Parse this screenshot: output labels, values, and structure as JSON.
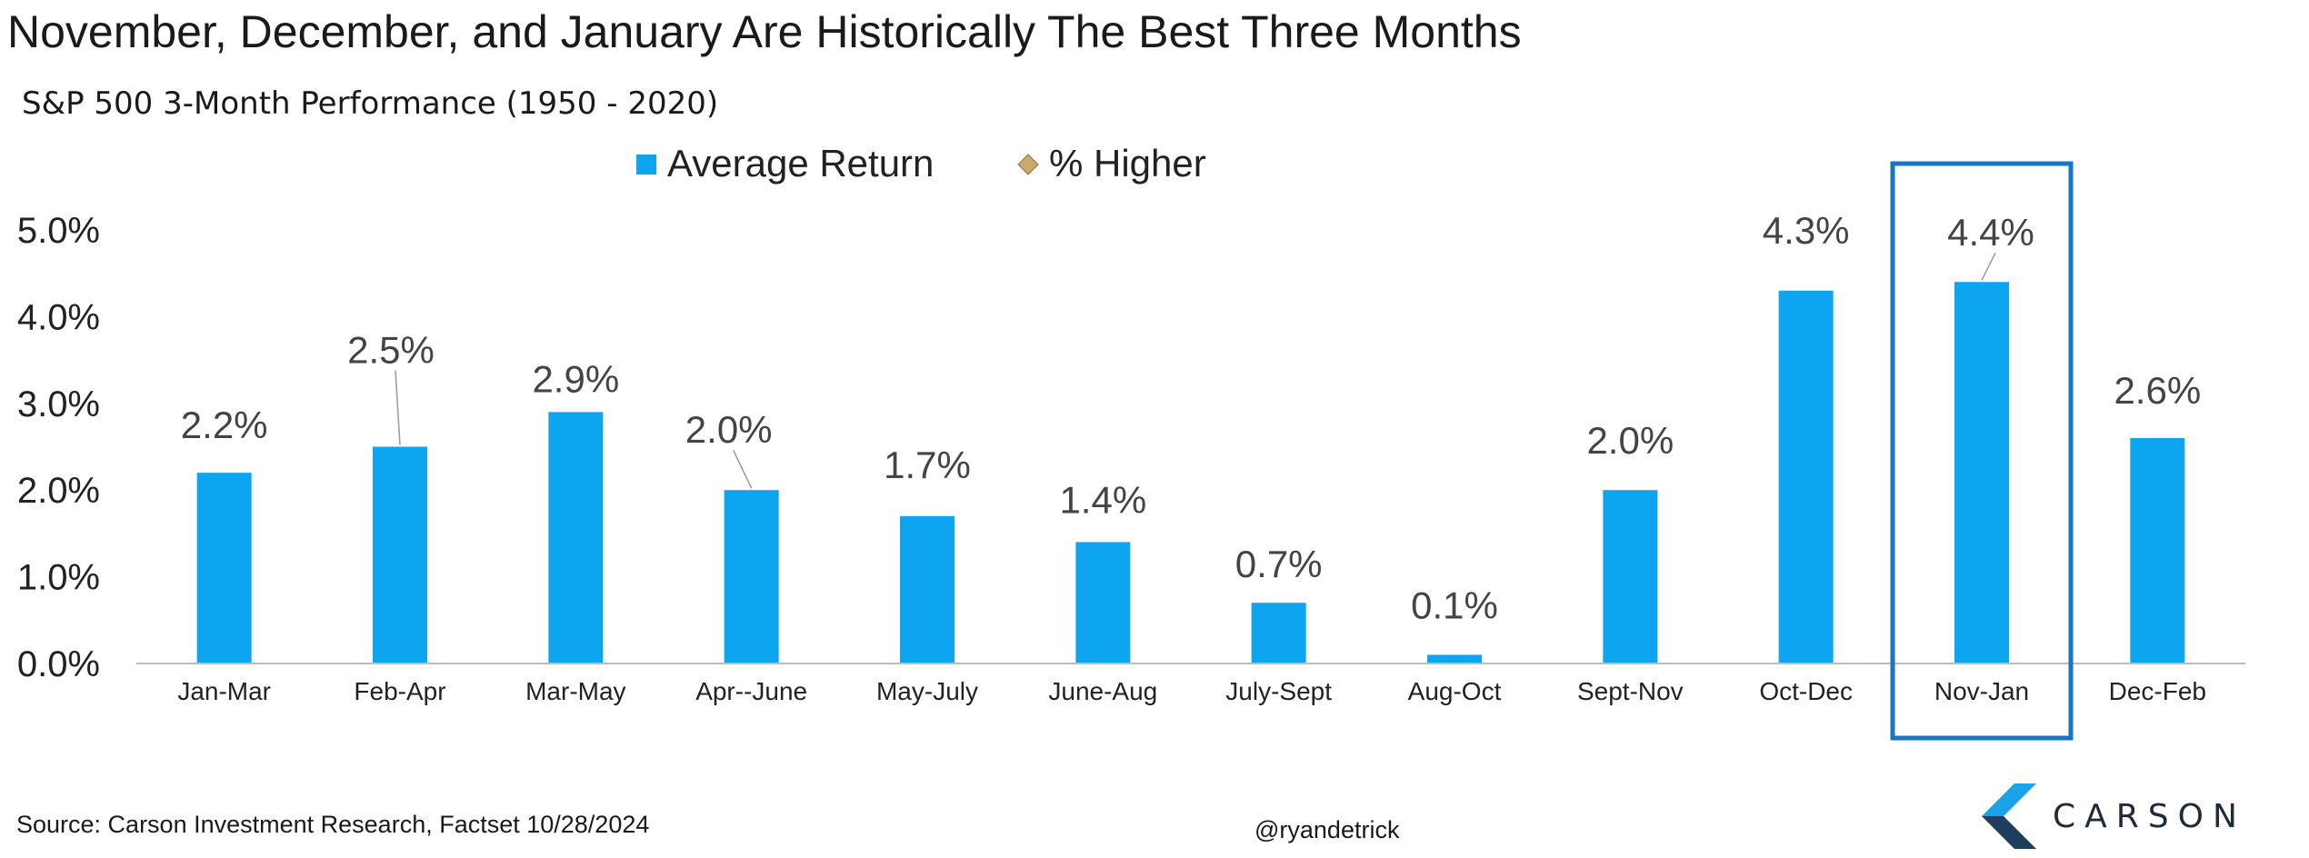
{
  "title": "November, December, and January Are Historically The Best Three Months",
  "subtitle": "S&P 500 3-Month Performance (1950 - 2020)",
  "source": "Source: Carson Investment Research, Factset 10/28/2024",
  "handle": "@ryandetrick",
  "logo": {
    "text": "CARSON",
    "icon": "carson-chevron-icon"
  },
  "colors": {
    "bar": "#0ea5f0",
    "marker": "#c9a96e",
    "highlight_box": "#1677c8",
    "axis": "#bdbdbd",
    "text": "#222222",
    "label": "#444444"
  },
  "chart_data": {
    "type": "bar",
    "categories": [
      "Jan-Mar",
      "Feb-Apr",
      "Mar-May",
      "Apr--June",
      "May-July",
      "June-Aug",
      "July-Sept",
      "Aug-Oct",
      "Sept-Nov",
      "Oct-Dec",
      "Nov-Jan",
      "Dec-Feb"
    ],
    "series": [
      {
        "name": "Average Return",
        "values": [
          2.2,
          2.5,
          2.9,
          2.0,
          1.7,
          1.4,
          0.7,
          0.1,
          2.0,
          4.3,
          4.4,
          2.6
        ]
      }
    ],
    "data_labels": [
      "2.2%",
      "2.5%",
      "2.9%",
      "2.0%",
      "1.7%",
      "1.4%",
      "0.7%",
      "0.1%",
      "2.0%",
      "4.3%",
      "4.4%",
      "2.6%"
    ],
    "legend": {
      "position": "top",
      "entries": [
        {
          "name": "Average Return",
          "marker": "square"
        },
        {
          "name": "% Higher",
          "marker": "diamond"
        }
      ]
    },
    "y_ticks": [
      "0.0%",
      "1.0%",
      "2.0%",
      "3.0%",
      "4.0%",
      "5.0%"
    ],
    "ylim": [
      0,
      5
    ],
    "grid": false,
    "highlighted_category": "Nov-Jan"
  }
}
